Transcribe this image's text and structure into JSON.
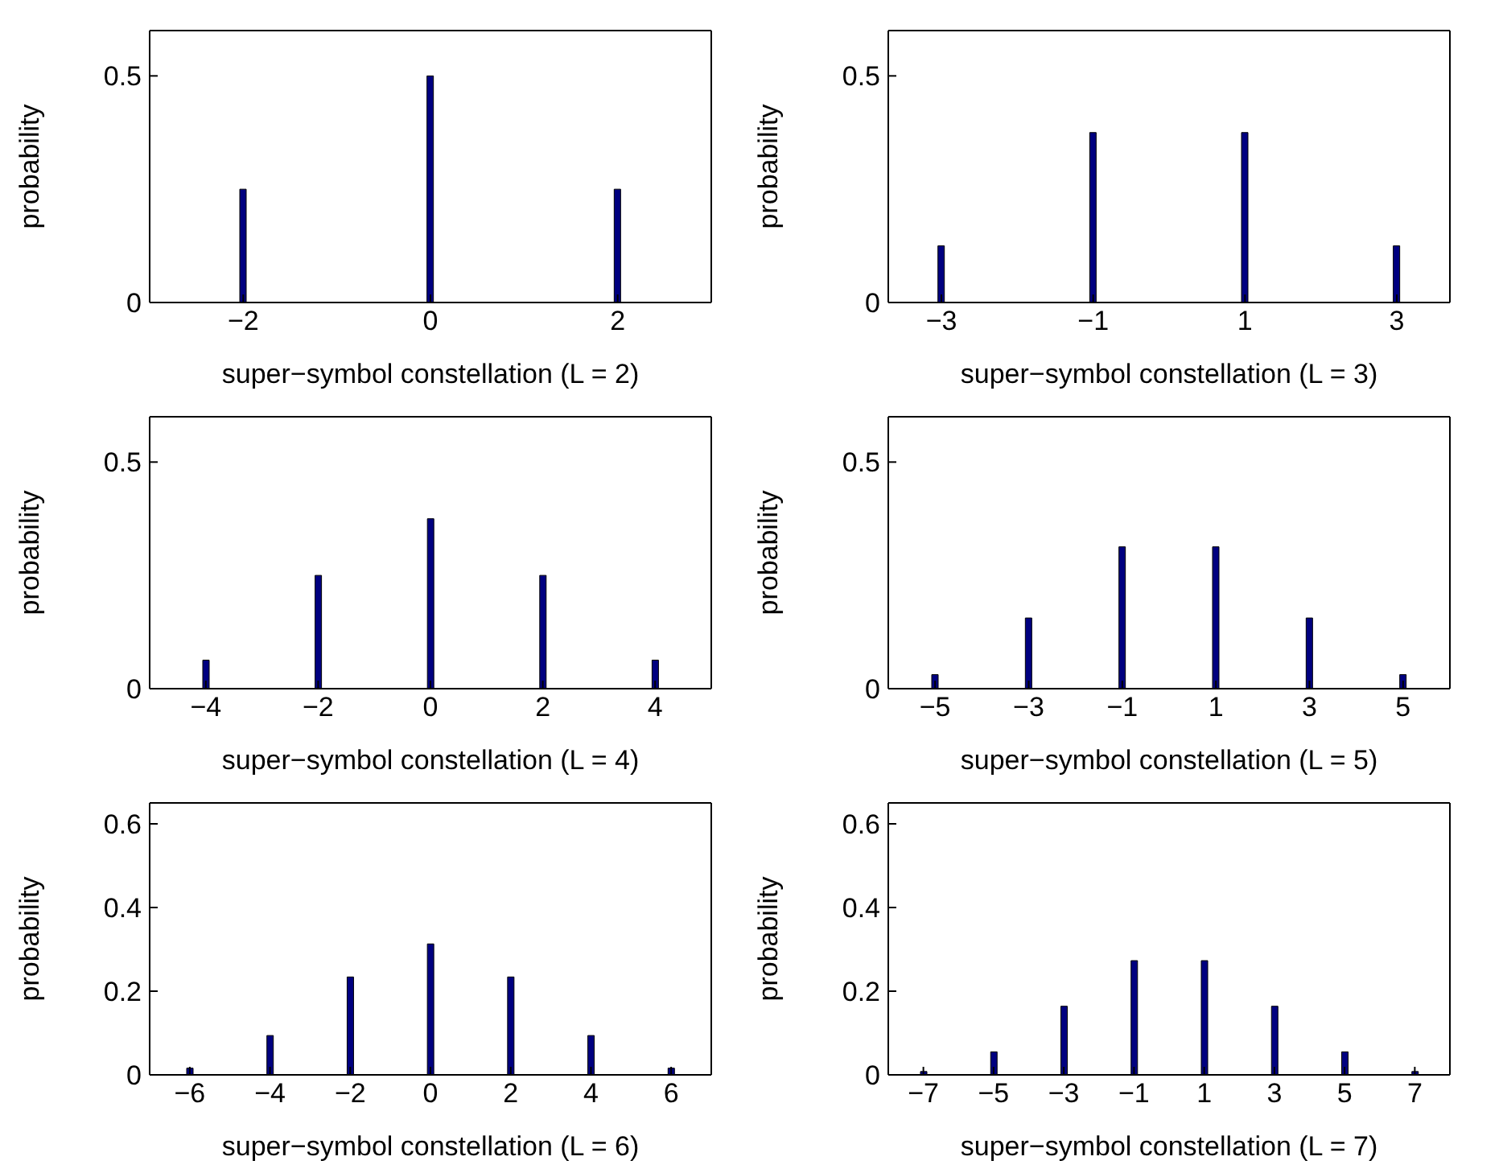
{
  "chart_data": [
    {
      "type": "bar",
      "xlabel": "super−symbol constellation (L = 2)",
      "ylabel": "probability",
      "x": [
        -2,
        0,
        2
      ],
      "values": [
        0.25,
        0.5,
        0.25
      ],
      "color": "#000080",
      "xlim": [
        -3,
        3
      ],
      "xticks": [
        {
          "value": -2,
          "label": "−2"
        },
        0,
        2
      ],
      "ylim": [
        0,
        0.6
      ],
      "yticks": [
        0,
        0.5
      ]
    },
    {
      "type": "bar",
      "xlabel": "super−symbol constellation (L = 3)",
      "ylabel": "probability",
      "x": [
        -3,
        -1,
        1,
        3
      ],
      "values": [
        0.125,
        0.375,
        0.375,
        0.125
      ],
      "color": "#000080",
      "xlim": [
        -3.7,
        3.7
      ],
      "xticks": [
        {
          "value": -3,
          "label": "−3"
        },
        {
          "value": -1,
          "label": "−1"
        },
        1,
        3
      ],
      "ylim": [
        0,
        0.6
      ],
      "yticks": [
        0,
        0.5
      ]
    },
    {
      "type": "bar",
      "xlabel": "super−symbol constellation (L = 4)",
      "ylabel": "probability",
      "x": [
        -4,
        -2,
        0,
        2,
        4
      ],
      "values": [
        0.063,
        0.25,
        0.375,
        0.25,
        0.063
      ],
      "color": "#000080",
      "xlim": [
        -5,
        5
      ],
      "xticks": [
        {
          "value": -4,
          "label": "−4"
        },
        {
          "value": -2,
          "label": "−2"
        },
        0,
        2,
        4
      ],
      "ylim": [
        0,
        0.6
      ],
      "yticks": [
        0,
        0.5
      ]
    },
    {
      "type": "bar",
      "xlabel": "super−symbol constellation (L = 5)",
      "ylabel": "probability",
      "x": [
        -5,
        -3,
        -1,
        1,
        3,
        5
      ],
      "values": [
        0.031,
        0.156,
        0.313,
        0.313,
        0.156,
        0.031
      ],
      "color": "#000080",
      "xlim": [
        -6,
        6
      ],
      "xticks": [
        {
          "value": -5,
          "label": "−5"
        },
        {
          "value": -3,
          "label": "−3"
        },
        {
          "value": -1,
          "label": "−1"
        },
        1,
        3,
        5
      ],
      "ylim": [
        0,
        0.6
      ],
      "yticks": [
        0,
        0.5
      ]
    },
    {
      "type": "bar",
      "xlabel": "super−symbol constellation (L = 6)",
      "ylabel": "probability",
      "x": [
        -6,
        -4,
        -2,
        0,
        2,
        4,
        6
      ],
      "values": [
        0.016,
        0.094,
        0.234,
        0.313,
        0.234,
        0.094,
        0.016
      ],
      "color": "#000080",
      "xlim": [
        -7,
        7
      ],
      "xticks": [
        {
          "value": -6,
          "label": "−6"
        },
        {
          "value": -4,
          "label": "−4"
        },
        {
          "value": -2,
          "label": "−2"
        },
        0,
        2,
        4,
        6
      ],
      "ylim": [
        0,
        0.65
      ],
      "yticks": [
        0,
        0.2,
        0.4,
        0.6
      ]
    },
    {
      "type": "bar",
      "xlabel": "super−symbol constellation (L = 7)",
      "ylabel": "probability",
      "x": [
        -7,
        -5,
        -3,
        -1,
        1,
        3,
        5,
        7
      ],
      "values": [
        0.008,
        0.055,
        0.164,
        0.273,
        0.273,
        0.164,
        0.055,
        0.008
      ],
      "color": "#000080",
      "xlim": [
        -8,
        8
      ],
      "xticks": [
        {
          "value": -7,
          "label": "−7"
        },
        {
          "value": -5,
          "label": "−5"
        },
        {
          "value": -3,
          "label": "−3"
        },
        {
          "value": -1,
          "label": "−1"
        },
        1,
        3,
        5,
        7
      ],
      "ylim": [
        0,
        0.65
      ],
      "yticks": [
        0,
        0.2,
        0.4,
        0.6
      ]
    }
  ]
}
